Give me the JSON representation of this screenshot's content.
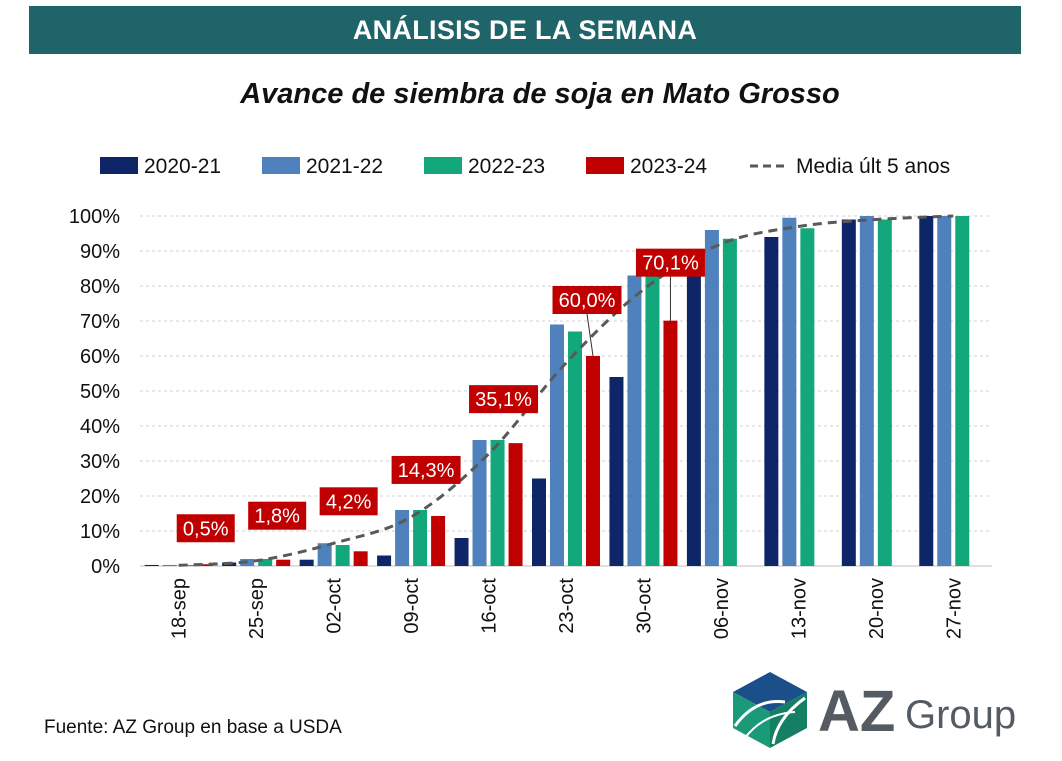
{
  "header": {
    "banner_title": "ANÁLISIS DE LA SEMANA"
  },
  "chart_data": {
    "type": "bar",
    "title": "Avance de siembra de soja en Mato Grosso",
    "xlabel": "",
    "ylabel": "",
    "ylim": [
      0,
      100
    ],
    "yticks": [
      "0%",
      "10%",
      "20%",
      "30%",
      "40%",
      "50%",
      "60%",
      "70%",
      "80%",
      "90%",
      "100%"
    ],
    "categories": [
      "18-sep",
      "25-sep",
      "02-oct",
      "09-oct",
      "16-oct",
      "23-oct",
      "30-oct",
      "06-nov",
      "13-nov",
      "20-nov",
      "27-nov"
    ],
    "series": [
      {
        "name": "2020-21",
        "color": "#0e2667",
        "values": [
          0.3,
          1.0,
          1.8,
          3.0,
          8.0,
          25.0,
          54.0,
          83.0,
          94.0,
          99.0,
          100.0
        ]
      },
      {
        "name": "2021-22",
        "color": "#4f81bd",
        "values": [
          0.3,
          2.0,
          6.5,
          16.0,
          36.0,
          69.0,
          83.0,
          96.0,
          99.5,
          100.0,
          100.0
        ]
      },
      {
        "name": "2022-23",
        "color": "#12a87b",
        "values": [
          0.3,
          2.0,
          6.0,
          16.0,
          36.0,
          67.0,
          83.5,
          93.5,
          96.5,
          99.0,
          100.0
        ]
      },
      {
        "name": "2023-24",
        "color": "#c00000",
        "values": [
          0.5,
          1.8,
          4.2,
          14.3,
          35.1,
          60.0,
          70.1,
          null,
          null,
          null,
          null
        ]
      }
    ],
    "average_line": {
      "name": "Media últ 5 anos",
      "color": "#595959",
      "values": [
        0.2,
        1.5,
        6.5,
        14.0,
        32.0,
        58.0,
        79.0,
        92.0,
        97.0,
        99.0,
        100.0
      ]
    },
    "data_labels": [
      "0,5%",
      "1,8%",
      "4,2%",
      "14,3%",
      "35,1%",
      "60,0%",
      "70,1%"
    ],
    "legend_position": "top"
  },
  "footer": {
    "source": "Fuente: AZ Group en base a USDA"
  },
  "logo": {
    "text_az": "AZ",
    "text_group": "Group",
    "color_dark": "#555b63",
    "color_blue": "#1b4f8a",
    "color_green": "#1a9a79"
  }
}
